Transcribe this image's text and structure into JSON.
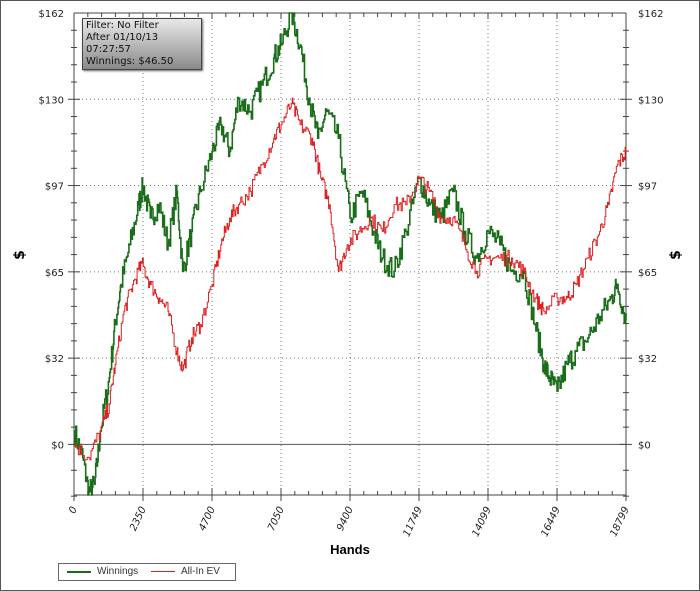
{
  "info": {
    "filter": "Filter: No Filter",
    "after": "After 01/10/13 07:27:57",
    "winnings": "Winnings: $46.50"
  },
  "colors": {
    "winnings": "#1a6e1a",
    "ev": "#dd2222",
    "axis": "#444444"
  },
  "chart_data": {
    "type": "line",
    "title": "",
    "xlabel": "Hands",
    "ylabel": "$",
    "xlim": [
      0,
      18799
    ],
    "ylim": [
      -19,
      162
    ],
    "grid": true,
    "legend": "bottom-left",
    "x_ticks": [
      0,
      2350,
      4700,
      7050,
      9400,
      11749,
      14099,
      16449,
      18799
    ],
    "x_tick_labels": [
      "0",
      "2350",
      "4700",
      "7050",
      "9400",
      "11749",
      "14099",
      "16449",
      "18799"
    ],
    "y_ticks": [
      0,
      32.4,
      64.8,
      97.2,
      129.6,
      162
    ],
    "y_tick_labels": [
      "$0",
      "$32",
      "$65",
      "$97",
      "$130",
      "$162"
    ],
    "series": [
      {
        "name": "Winnings",
        "x": [
          0,
          300,
          500,
          700,
          900,
          1200,
          1400,
          1600,
          1900,
          2200,
          2350,
          2600,
          2900,
          3200,
          3500,
          3700,
          4000,
          4300,
          4700,
          5000,
          5300,
          5600,
          6000,
          6400,
          6800,
          7050,
          7400,
          7700,
          8000,
          8300,
          8600,
          9000,
          9400,
          9800,
          10200,
          10500,
          10900,
          11300,
          11749,
          12100,
          12500,
          12900,
          13300,
          13700,
          14099,
          14500,
          14900,
          15300,
          15700,
          16000,
          16200,
          16449,
          16800,
          17100,
          17500,
          17900,
          18300,
          18500,
          18799
        ],
        "values": [
          5,
          -5,
          -18,
          -15,
          5,
          25,
          45,
          60,
          75,
          90,
          97,
          85,
          90,
          75,
          95,
          65,
          80,
          95,
          110,
          120,
          110,
          130,
          125,
          135,
          145,
          150,
          162,
          150,
          130,
          115,
          125,
          115,
          85,
          95,
          80,
          70,
          65,
          80,
          100,
          90,
          85,
          95,
          80,
          70,
          80,
          75,
          65,
          65,
          45,
          30,
          25,
          20,
          30,
          35,
          40,
          48,
          55,
          60,
          46.5
        ]
      },
      {
        "name": "All-In EV",
        "x": [
          0,
          500,
          900,
          1200,
          1400,
          1700,
          2000,
          2300,
          2600,
          2900,
          3200,
          3500,
          3700,
          4000,
          4300,
          4700,
          5000,
          5300,
          5600,
          6000,
          6400,
          6800,
          7050,
          7400,
          7700,
          8100,
          8400,
          8700,
          9000,
          9300,
          9700,
          10100,
          10500,
          10900,
          11300,
          11749,
          12100,
          12500,
          12900,
          13300,
          13700,
          14099,
          14500,
          14900,
          15300,
          15700,
          16000,
          16449,
          16800,
          17100,
          17500,
          17900,
          18200,
          18500,
          18799
        ],
        "values": [
          0,
          -5,
          5,
          15,
          30,
          50,
          60,
          68,
          60,
          55,
          50,
          35,
          28,
          40,
          45,
          60,
          75,
          85,
          90,
          95,
          105,
          115,
          120,
          128,
          120,
          115,
          100,
          90,
          65,
          75,
          80,
          85,
          80,
          90,
          90,
          100,
          95,
          85,
          85,
          75,
          65,
          70,
          70,
          70,
          65,
          55,
          50,
          55,
          55,
          60,
          70,
          80,
          90,
          105,
          110
        ]
      }
    ]
  }
}
